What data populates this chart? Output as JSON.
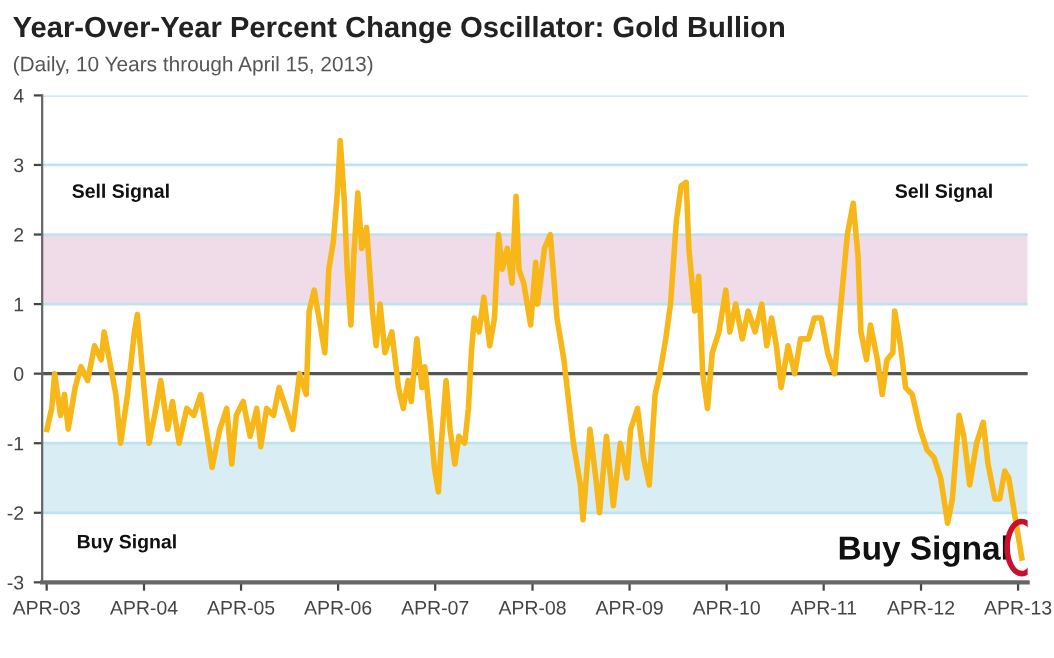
{
  "chart_data": {
    "type": "line",
    "title": "Year-Over-Year Percent Change Oscillator: Gold Bullion",
    "subtitle": "(Daily, 10 Years through April 15, 2013)",
    "series": [
      {
        "color": "#f7b718",
        "x": [
          "2003-04-02",
          "2003-04-20",
          "2003-05-01",
          "2003-05-23",
          "2003-06-07",
          "2003-06-21",
          "2003-07-17",
          "2003-08-08",
          "2003-09-02",
          "2003-09-28",
          "2003-10-23",
          "2003-11-03",
          "2003-11-28",
          "2003-12-17",
          "2004-01-04",
          "2004-01-30",
          "2004-02-25",
          "2004-03-07",
          "2004-03-25",
          "2004-04-20",
          "2004-05-16",
          "2004-06-03",
          "2004-06-29",
          "2004-07-17",
          "2004-08-11",
          "2004-09-09",
          "2004-10-05",
          "2004-10-31",
          "2004-11-25",
          "2004-12-13",
          "2005-01-11",
          "2005-02-06",
          "2005-02-25",
          "2005-03-14",
          "2005-04-09",
          "2005-05-05",
          "2005-05-30",
          "2005-06-14",
          "2005-07-06",
          "2005-08-01",
          "2005-08-22",
          "2005-09-17",
          "2005-10-12",
          "2005-11-07",
          "2005-12-02",
          "2005-12-13",
          "2006-01-01",
          "2006-01-19",
          "2006-02-10",
          "2006-02-25",
          "2006-03-14",
          "2006-03-29",
          "2006-04-09",
          "2006-04-24",
          "2006-05-05",
          "2006-05-19",
          "2006-05-30",
          "2006-06-14",
          "2006-06-29",
          "2006-07-17",
          "2006-08-08",
          "2006-08-22",
          "2006-09-06",
          "2006-09-24",
          "2006-10-20",
          "2006-11-14",
          "2006-12-02",
          "2006-12-20",
          "2007-01-01",
          "2007-01-22",
          "2007-02-10",
          "2007-02-21",
          "2007-03-14",
          "2007-03-29",
          "2007-04-13",
          "2007-04-24",
          "2007-05-12",
          "2007-05-27",
          "2007-06-14",
          "2007-06-29",
          "2007-07-21",
          "2007-08-04",
          "2007-08-15",
          "2007-08-26",
          "2007-09-13",
          "2007-10-01",
          "2007-10-23",
          "2007-11-10",
          "2007-11-25",
          "2007-12-09",
          "2007-12-28",
          "2008-01-15",
          "2008-01-30",
          "2008-02-10",
          "2008-02-28",
          "2008-03-25",
          "2008-04-13",
          "2008-04-20",
          "2008-05-16",
          "2008-06-07",
          "2008-07-02",
          "2008-07-28",
          "2008-08-15",
          "2008-09-02",
          "2008-09-28",
          "2008-10-08",
          "2008-11-03",
          "2008-11-25",
          "2008-12-09",
          "2009-01-04",
          "2009-01-30",
          "2009-02-25",
          "2009-03-22",
          "2009-04-05",
          "2009-05-01",
          "2009-05-23",
          "2009-06-14",
          "2009-07-06",
          "2009-07-24",
          "2009-08-15",
          "2009-09-02",
          "2009-09-24",
          "2009-10-12",
          "2009-10-31",
          "2009-11-10",
          "2009-12-02",
          "2009-12-17",
          "2010-01-01",
          "2010-01-19",
          "2010-02-06",
          "2010-03-03",
          "2010-03-29",
          "2010-04-13",
          "2010-05-05",
          "2010-05-30",
          "2010-06-21",
          "2010-07-17",
          "2010-08-11",
          "2010-08-30",
          "2010-09-17",
          "2010-10-05",
          "2010-10-23",
          "2010-11-18",
          "2010-12-13",
          "2011-01-04",
          "2011-02-03",
          "2011-02-25",
          "2011-03-22",
          "2011-04-16",
          "2011-05-12",
          "2011-06-07",
          "2011-06-29",
          "2011-07-21",
          "2011-08-08",
          "2011-08-19",
          "2011-09-09",
          "2011-09-24",
          "2011-10-20",
          "2011-11-07",
          "2011-11-25",
          "2011-12-17",
          "2011-12-24",
          "2012-01-15",
          "2012-02-03",
          "2012-02-28",
          "2012-03-29",
          "2012-04-24",
          "2012-05-19",
          "2012-06-14",
          "2012-07-10",
          "2012-07-28",
          "2012-08-22",
          "2012-09-09",
          "2012-10-01",
          "2012-10-27",
          "2012-11-21",
          "2012-12-09",
          "2013-01-04",
          "2013-01-22",
          "2013-02-10",
          "2013-02-25",
          "2013-04-15"
        ],
        "values": [
          -0.8,
          -0.5,
          0.0,
          -0.6,
          -0.3,
          -0.8,
          -0.2,
          0.1,
          -0.1,
          0.4,
          0.2,
          0.6,
          0.1,
          -0.3,
          -1.0,
          -0.3,
          0.6,
          0.85,
          0.1,
          -1.0,
          -0.5,
          -0.1,
          -0.8,
          -0.4,
          -1.0,
          -0.5,
          -0.6,
          -0.3,
          -0.9,
          -1.35,
          -0.8,
          -0.5,
          -1.3,
          -0.6,
          -0.4,
          -0.9,
          -0.5,
          -1.05,
          -0.5,
          -0.6,
          -0.2,
          -0.5,
          -0.8,
          0.0,
          -0.3,
          0.9,
          1.2,
          0.8,
          0.3,
          1.5,
          1.9,
          2.6,
          3.35,
          2.5,
          1.5,
          0.7,
          1.7,
          2.6,
          1.8,
          2.1,
          0.9,
          0.4,
          1.0,
          0.3,
          0.6,
          -0.2,
          -0.5,
          -0.1,
          -0.4,
          0.5,
          -0.2,
          0.1,
          -0.7,
          -1.35,
          -1.7,
          -1.0,
          -0.1,
          -0.8,
          -1.3,
          -0.9,
          -1.0,
          -0.5,
          0.3,
          0.8,
          0.6,
          1.1,
          0.4,
          0.8,
          2.0,
          1.5,
          1.8,
          1.3,
          2.55,
          1.5,
          1.3,
          0.7,
          1.6,
          1.0,
          1.8,
          2.0,
          0.8,
          0.2,
          -0.4,
          -1.0,
          -1.6,
          -2.1,
          -0.8,
          -1.5,
          -2.0,
          -0.9,
          -1.9,
          -1.0,
          -1.5,
          -0.8,
          -0.5,
          -1.2,
          -1.6,
          -0.3,
          0.0,
          0.5,
          1.0,
          2.2,
          2.7,
          2.75,
          1.8,
          0.9,
          1.4,
          0.0,
          -0.5,
          0.3,
          0.6,
          1.2,
          0.6,
          1.0,
          0.5,
          0.9,
          0.6,
          1.0,
          0.4,
          0.8,
          0.4,
          -0.2,
          0.4,
          0.0,
          0.5,
          0.5,
          0.8,
          0.8,
          0.3,
          0.0,
          1.1,
          2.0,
          2.45,
          1.7,
          0.6,
          0.2,
          0.7,
          0.2,
          -0.3,
          0.2,
          0.3,
          0.9,
          0.4,
          -0.2,
          -0.3,
          -0.8,
          -1.1,
          -1.2,
          -1.5,
          -2.15,
          -1.8,
          -0.6,
          -0.9,
          -1.6,
          -1.0,
          -0.7,
          -1.3,
          -1.8,
          -1.8,
          -1.4,
          -1.5,
          -2.65
        ]
      }
    ],
    "xlim": [
      "2003-03-15",
      "2013-05-07"
    ],
    "xticks": [
      {
        "value": "2003-04-01",
        "label": "APR-03"
      },
      {
        "value": "2004-04-01",
        "label": "APR-04"
      },
      {
        "value": "2005-04-01",
        "label": "APR-05"
      },
      {
        "value": "2006-04-01",
        "label": "APR-06"
      },
      {
        "value": "2007-04-01",
        "label": "APR-07"
      },
      {
        "value": "2008-04-01",
        "label": "APR-08"
      },
      {
        "value": "2009-04-01",
        "label": "APR-09"
      },
      {
        "value": "2010-04-01",
        "label": "APR-10"
      },
      {
        "value": "2011-04-01",
        "label": "APR-11"
      },
      {
        "value": "2012-04-01",
        "label": "APR-12"
      },
      {
        "value": "2013-04-01",
        "label": "APR-13"
      }
    ],
    "ylim": [
      -3,
      4
    ],
    "yticks": [
      -3,
      -2,
      -1,
      0,
      1,
      2,
      3,
      4
    ],
    "grid": "y",
    "line_style": "solid",
    "bands": [
      {
        "axis": "y",
        "from": 1,
        "to": 2,
        "color": "#f0dbe9"
      },
      {
        "axis": "y",
        "from": -2,
        "to": -1,
        "color": "#d9eef4"
      }
    ],
    "ref_lines": [
      {
        "axis": "y",
        "value": 0,
        "color": "#555555"
      }
    ],
    "annotations": [
      "Sell Signal",
      "Sell Signal",
      "Buy Signal",
      {
        "text": "Buy Signal",
        "x": "2013-04-15",
        "y": -2.65
      }
    ]
  }
}
